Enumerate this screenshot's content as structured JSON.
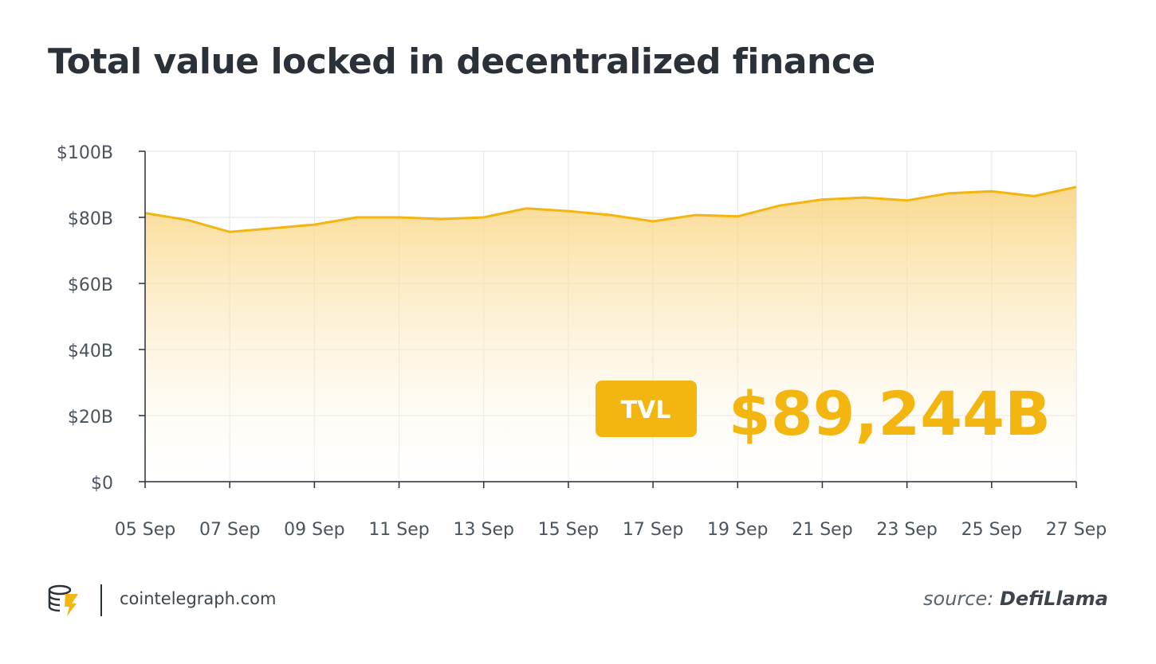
{
  "title": "Total value locked in decentralized finance",
  "badge": {
    "label": "TVL",
    "value": "$89,244B"
  },
  "footer": {
    "brand": "cointelegraph.com",
    "source_prefix": "source:",
    "source_name": "DefiLlama"
  },
  "colors": {
    "accent": "#f3b50f",
    "text": "#2a3138",
    "grid": "#e8e8e8"
  },
  "icons": {
    "logo": "cointelegraph-logo-icon"
  },
  "chart_data": {
    "type": "area",
    "ylim": [
      0,
      100
    ],
    "yticks": [
      0,
      20,
      40,
      60,
      80,
      100
    ],
    "ytick_labels": [
      "$0",
      "$20B",
      "$40B",
      "$60B",
      "$80B",
      "$100B"
    ],
    "xtick_labels": [
      "05 Sep",
      "07 Sep",
      "09 Sep",
      "11 Sep",
      "13 Sep",
      "15 Sep",
      "17 Sep",
      "19 Sep",
      "21 Sep",
      "23 Sep",
      "25 Sep",
      "27 Sep"
    ],
    "x": [
      "05 Sep",
      "06 Sep",
      "07 Sep",
      "08 Sep",
      "09 Sep",
      "10 Sep",
      "11 Sep",
      "12 Sep",
      "13 Sep",
      "14 Sep",
      "15 Sep",
      "16 Sep",
      "17 Sep",
      "18 Sep",
      "19 Sep",
      "20 Sep",
      "21 Sep",
      "22 Sep",
      "23 Sep",
      "24 Sep",
      "25 Sep",
      "26 Sep",
      "27 Sep"
    ],
    "values": [
      81.3,
      79.2,
      75.6,
      76.7,
      77.8,
      80.0,
      80.0,
      79.5,
      80.0,
      82.7,
      81.9,
      80.7,
      78.8,
      80.7,
      80.3,
      83.6,
      85.4,
      86.0,
      85.1,
      87.3,
      87.9,
      86.4,
      89.2
    ],
    "grid": true
  }
}
